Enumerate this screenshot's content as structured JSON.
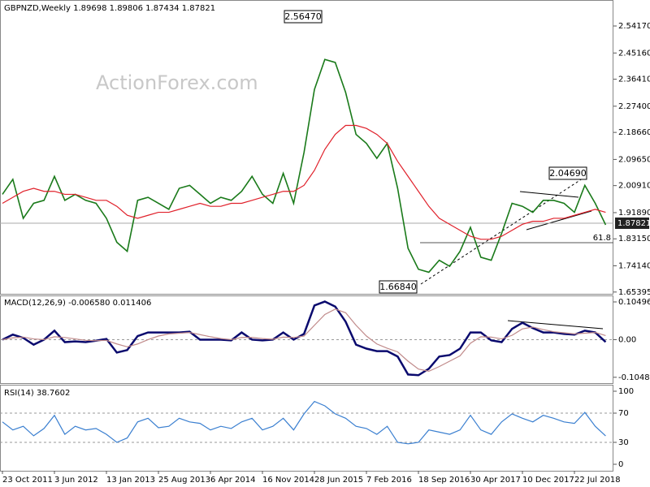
{
  "chart_data": [
    {
      "type": "line",
      "title": "GBPNZD,Weekly  1.89698 1.89806 1.87434 1.87821",
      "watermark": "ActionForex.com",
      "categories": [
        "23 Oct 2011",
        null,
        null,
        null,
        null,
        "3 Jun 2012",
        null,
        null,
        null,
        null,
        "13 Jan 2013",
        null,
        null,
        null,
        null,
        "25 Aug 2013",
        null,
        null,
        null,
        null,
        "6 Apr 2014",
        null,
        null,
        null,
        null,
        "16 Nov 2014",
        null,
        null,
        null,
        null,
        "28 Jun 2015",
        null,
        null,
        null,
        null,
        "7 Feb 2016",
        null,
        null,
        null,
        null,
        "18 Sep 2016",
        null,
        null,
        null,
        null,
        "30 Apr 2017",
        null,
        null,
        null,
        null,
        "10 Dec 2017",
        null,
        null,
        null,
        null,
        "22 Jul 2018",
        null,
        null,
        null
      ],
      "series": [
        {
          "name": "GBPNZD",
          "color": "#1a7a1a",
          "values": [
            1.98,
            2.03,
            1.9,
            1.95,
            1.96,
            2.04,
            1.96,
            1.98,
            1.96,
            1.95,
            1.9,
            1.82,
            1.79,
            1.96,
            1.97,
            1.95,
            1.93,
            2.0,
            2.01,
            1.98,
            1.95,
            1.97,
            1.96,
            1.99,
            2.04,
            1.98,
            1.95,
            2.05,
            1.95,
            2.12,
            2.33,
            2.43,
            2.42,
            2.32,
            2.18,
            2.15,
            2.1,
            2.15,
            2.0,
            1.8,
            1.73,
            1.72,
            1.76,
            1.74,
            1.79,
            1.87,
            1.77,
            1.76,
            1.85,
            1.95,
            1.94,
            1.92,
            1.96,
            1.96,
            1.95,
            1.92,
            2.01,
            1.95,
            1.87821
          ]
        },
        {
          "name": "MA",
          "color": "#e0202a",
          "values": [
            1.95,
            1.97,
            1.99,
            2.0,
            1.99,
            1.99,
            1.98,
            1.98,
            1.97,
            1.96,
            1.96,
            1.94,
            1.91,
            1.9,
            1.91,
            1.92,
            1.92,
            1.93,
            1.94,
            1.95,
            1.94,
            1.94,
            1.95,
            1.95,
            1.96,
            1.97,
            1.98,
            1.99,
            1.99,
            2.01,
            2.06,
            2.13,
            2.18,
            2.21,
            2.21,
            2.2,
            2.18,
            2.15,
            2.09,
            2.04,
            1.99,
            1.94,
            1.9,
            1.88,
            1.86,
            1.84,
            1.83,
            1.83,
            1.84,
            1.86,
            1.88,
            1.89,
            1.89,
            1.9,
            1.9,
            1.91,
            1.92,
            1.93,
            1.92
          ]
        }
      ],
      "ylim": [
        1.648,
        2.623
      ],
      "yticks": [
        {
          "value": 2.5417,
          "label": "2.54170"
        },
        {
          "value": 2.4516,
          "label": "2.45160"
        },
        {
          "value": 2.3641,
          "label": "2.36410"
        },
        {
          "value": 2.274,
          "label": "2.27400"
        },
        {
          "value": 2.1866,
          "label": "2.18660"
        },
        {
          "value": 2.0965,
          "label": "2.09650"
        },
        {
          "value": 2.0091,
          "label": "2.00910"
        },
        {
          "value": 1.9189,
          "label": "1.91890"
        },
        {
          "value": 1.8315,
          "label": "1.83150"
        },
        {
          "value": 1.7414,
          "label": "1.74140"
        },
        1.65395
      ],
      "annotations": [
        "2.56470",
        "2.04690",
        "1.66840",
        "1.87821",
        "61.8"
      ]
    },
    {
      "type": "line",
      "title": "MACD(12,26,9) -0.006580 0.011406",
      "series": [
        {
          "name": "MACD",
          "color": "#0a0a6e",
          "values": [
            0.0,
            0.014,
            0.005,
            -0.014,
            0.0,
            0.025,
            -0.007,
            -0.005,
            -0.007,
            -0.003,
            0.002,
            -0.036,
            -0.029,
            0.01,
            0.02,
            0.02,
            0.02,
            0.02,
            0.022,
            0.0,
            0.0,
            0.0,
            -0.002,
            0.02,
            0.0,
            -0.002,
            0.0,
            0.02,
            0.0,
            0.016,
            0.095,
            0.106,
            0.092,
            0.05,
            -0.014,
            -0.025,
            -0.032,
            -0.032,
            -0.047,
            -0.097,
            -0.099,
            -0.081,
            -0.047,
            -0.043,
            -0.025,
            0.02,
            0.02,
            -0.002,
            -0.007,
            0.03,
            0.047,
            0.032,
            0.02,
            0.02,
            0.016,
            0.014,
            0.025,
            0.02,
            -0.00658
          ]
        },
        {
          "name": "Signal",
          "color": "#c08a8a",
          "values": [
            0.0,
            0.005,
            0.007,
            0.002,
            0.0,
            0.008,
            0.006,
            0.002,
            -0.002,
            -0.003,
            -0.002,
            -0.012,
            -0.02,
            -0.012,
            0.0,
            0.01,
            0.016,
            0.018,
            0.02,
            0.014,
            0.008,
            0.003,
            0.0,
            0.006,
            0.006,
            0.003,
            0.001,
            0.007,
            0.006,
            0.01,
            0.04,
            0.07,
            0.085,
            0.075,
            0.04,
            0.01,
            -0.012,
            -0.024,
            -0.034,
            -0.06,
            -0.082,
            -0.088,
            -0.075,
            -0.06,
            -0.045,
            -0.01,
            0.008,
            0.007,
            0.002,
            0.012,
            0.03,
            0.035,
            0.028,
            0.022,
            0.019,
            0.016,
            0.018,
            0.02,
            0.011406
          ]
        }
      ],
      "ylim": [
        -0.121,
        0.123
      ],
      "yticks": [
        0.104962,
        {
          "value": 0,
          "label": "0.00"
        },
        -0.104804
      ],
      "grid": true
    },
    {
      "type": "line",
      "title": "RSI(14) 38.7602",
      "series": [
        {
          "name": "RSI",
          "color": "#3a7fd0",
          "values": [
            58,
            47,
            52,
            39,
            49,
            67,
            41,
            52,
            47,
            49,
            41,
            30,
            36,
            58,
            63,
            50,
            52,
            63,
            58,
            56,
            47,
            52,
            49,
            58,
            63,
            47,
            52,
            63,
            47,
            69,
            86,
            80,
            69,
            63,
            52,
            49,
            41,
            52,
            30,
            28,
            30,
            47,
            44,
            41,
            47,
            67,
            47,
            41,
            58,
            69,
            63,
            58,
            67,
            63,
            58,
            56,
            71,
            52,
            38.7602
          ]
        }
      ],
      "ylim": [
        -8.9,
        108.9
      ],
      "yticks": [
        100,
        70,
        30,
        0
      ],
      "grid": true
    }
  ]
}
